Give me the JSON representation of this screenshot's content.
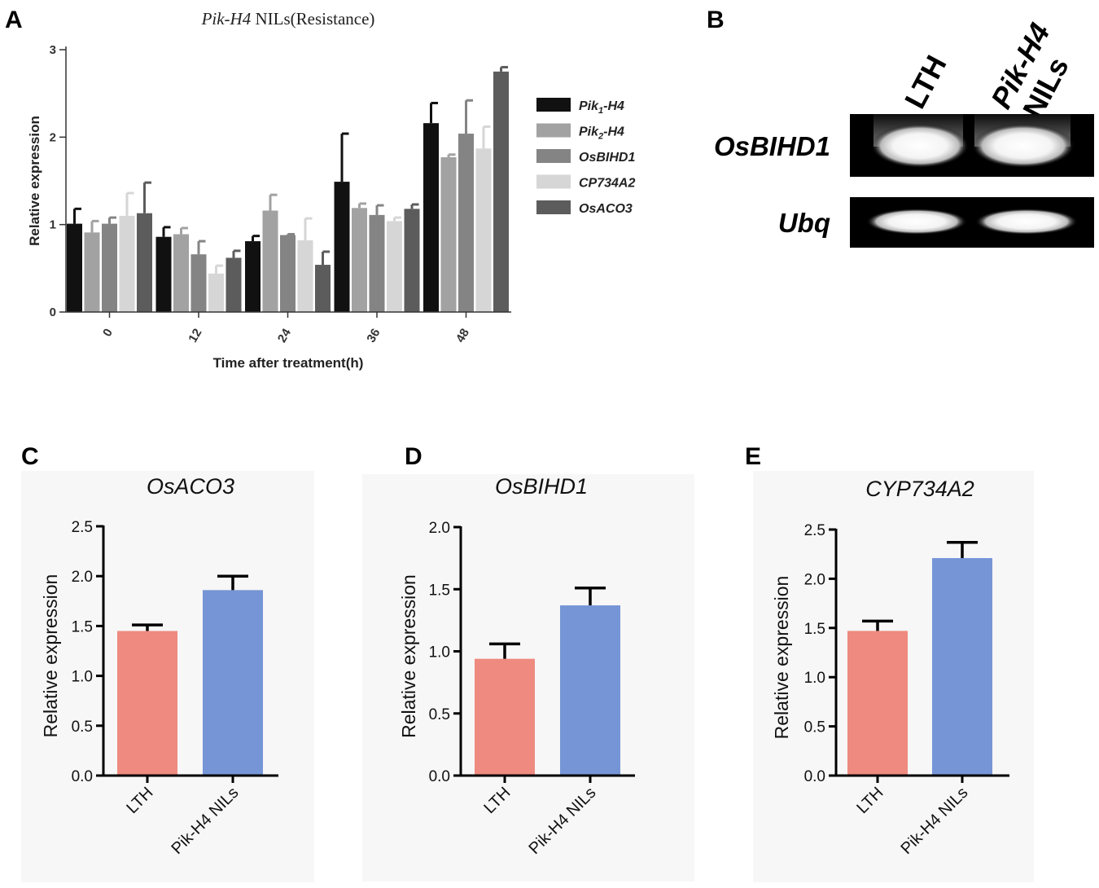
{
  "panels": {
    "A": "A",
    "B": "B",
    "C": "C",
    "D": "D",
    "E": "E"
  },
  "colors": {
    "lth": "#ee8a7f",
    "nil": "#7595d6",
    "series": [
      "#111111",
      "#a2a2a2",
      "#848484",
      "#d6d6d6",
      "#5c5c5c"
    ]
  },
  "chart_data": [
    {
      "id": "A",
      "type": "bar",
      "title_italic": "Pik-H4",
      "title_rest": " NILs(Resistance)",
      "xlabel": "Time after treatment(h)",
      "ylabel": "Relative expression",
      "ylim": [
        0,
        3
      ],
      "yticks": [
        "0",
        "1",
        "2",
        "3"
      ],
      "categories": [
        "0",
        "12",
        "24",
        "36",
        "48"
      ],
      "series": [
        {
          "name": "Pik1-H4",
          "legend_main": "Pik",
          "legend_sub": "1",
          "legend_rest": "-H4",
          "values": [
            1.01,
            0.86,
            0.81,
            1.49,
            2.16
          ],
          "errors": [
            0.17,
            0.11,
            0.06,
            0.55,
            0.23
          ]
        },
        {
          "name": "Pik2-H4",
          "legend_main": "Pik",
          "legend_sub": "2",
          "legend_rest": "-H4",
          "values": [
            0.91,
            0.89,
            1.16,
            1.19,
            1.77
          ],
          "errors": [
            0.13,
            0.07,
            0.18,
            0.05,
            0.03
          ]
        },
        {
          "name": "OsBIHD1",
          "legend_main": "OsBIHD1",
          "legend_sub": "",
          "legend_rest": "",
          "values": [
            1.01,
            0.66,
            0.88,
            1.11,
            2.04
          ],
          "errors": [
            0.07,
            0.15,
            0.01,
            0.11,
            0.38
          ]
        },
        {
          "name": "CP734A2",
          "legend_main": "CP734A2",
          "legend_sub": "",
          "legend_rest": "",
          "values": [
            1.1,
            0.44,
            0.82,
            1.04,
            1.87
          ],
          "errors": [
            0.26,
            0.09,
            0.25,
            0.04,
            0.25
          ]
        },
        {
          "name": "OsACO3",
          "legend_main": "OsACO3",
          "legend_sub": "",
          "legend_rest": "",
          "values": [
            1.13,
            0.62,
            0.54,
            1.18,
            2.75
          ],
          "errors": [
            0.35,
            0.08,
            0.15,
            0.05,
            0.05
          ]
        }
      ]
    },
    {
      "id": "C",
      "type": "bar",
      "title": "OsACO3",
      "ylabel": "Relative expression",
      "ylim": [
        0,
        2.5
      ],
      "yticks": [
        "0.0",
        "0.5",
        "1.0",
        "1.5",
        "2.0",
        "2.5"
      ],
      "categories": [
        "LTH",
        "Pik-H4 NILs"
      ],
      "values": [
        1.45,
        1.86
      ],
      "errors": [
        0.06,
        0.14
      ]
    },
    {
      "id": "D",
      "type": "bar",
      "title": "OsBIHD1",
      "ylabel": "Relative expression",
      "ylim": [
        0,
        2.0
      ],
      "yticks": [
        "0.0",
        "0.5",
        "1.0",
        "1.5",
        "2.0"
      ],
      "categories": [
        "LTH",
        "Pik-H4 NILs"
      ],
      "values": [
        0.94,
        1.37
      ],
      "errors": [
        0.12,
        0.14
      ]
    },
    {
      "id": "E",
      "type": "bar",
      "title": "CYP734A2",
      "ylabel": "Relative expression",
      "ylim": [
        0,
        2.5
      ],
      "yticks": [
        "0.0",
        "0.5",
        "1.0",
        "1.5",
        "2.0",
        "2.5"
      ],
      "categories": [
        "LTH",
        "Pik-H4 NILs"
      ],
      "values": [
        1.47,
        2.21
      ],
      "errors": [
        0.1,
        0.16
      ]
    }
  ],
  "gel": {
    "lanes": [
      "LTH",
      "Pik-H4 NILs"
    ],
    "lane1": "LTH",
    "lane2_line1": "Pik-H4",
    "lane2_line2": "NILs",
    "rows": [
      "OsBIHD1",
      "Ubq"
    ]
  }
}
